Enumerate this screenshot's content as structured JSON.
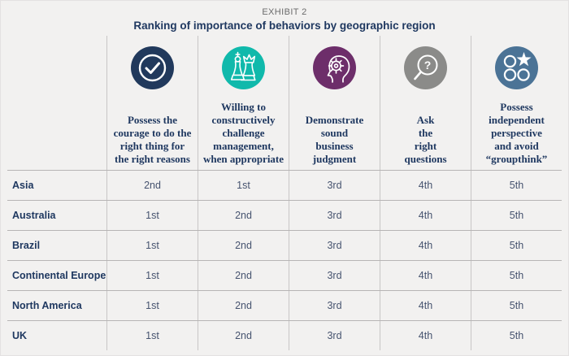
{
  "header": {
    "exhibit_label": "EXHIBIT 2",
    "title": "Ranking of importance of behaviors by geographic region"
  },
  "columns": [
    {
      "icon": "check-circle-icon",
      "color": "#21395c",
      "label": "Possess the\ncourage to do the\nright thing for\nthe right reasons"
    },
    {
      "icon": "chess-pieces-icon",
      "color": "#10b9ab",
      "label": "Willing to\nconstructively\nchallenge\nmanagement,\nwhen appropriate"
    },
    {
      "icon": "head-gear-icon",
      "color": "#6d2e6a",
      "label": "Demonstrate\nsound\nbusiness\njudgment"
    },
    {
      "icon": "magnifier-question-icon",
      "color": "#8b8b89",
      "label": "Ask\nthe\nright\nquestions"
    },
    {
      "icon": "circles-star-icon",
      "color": "#4b7396",
      "label": "Possess\nindependent\nperspective\nand avoid\n“groupthink”"
    }
  ],
  "rows": [
    {
      "region": "Asia",
      "ranks": [
        "2nd",
        "1st",
        "3rd",
        "4th",
        "5th"
      ]
    },
    {
      "region": "Australia",
      "ranks": [
        "1st",
        "2nd",
        "3rd",
        "4th",
        "5th"
      ]
    },
    {
      "region": "Brazil",
      "ranks": [
        "1st",
        "2nd",
        "3rd",
        "4th",
        "5th"
      ]
    },
    {
      "region": "Continental Europe",
      "ranks": [
        "1st",
        "2nd",
        "3rd",
        "4th",
        "5th"
      ]
    },
    {
      "region": "North America",
      "ranks": [
        "1st",
        "2nd",
        "3rd",
        "4th",
        "5th"
      ]
    },
    {
      "region": "UK",
      "ranks": [
        "1st",
        "2nd",
        "3rd",
        "4th",
        "5th"
      ]
    }
  ],
  "chart_data": {
    "type": "table",
    "title": "Ranking of importance of behaviors by geographic region",
    "exhibit": "EXHIBIT 2",
    "columns": [
      "Possess the courage to do the right thing for the right reasons",
      "Willing to constructively challenge management, when appropriate",
      "Demonstrate sound business judgment",
      "Ask the right questions",
      "Possess independent perspective and avoid “groupthink”"
    ],
    "rows": [
      "Asia",
      "Australia",
      "Brazil",
      "Continental Europe",
      "North America",
      "UK"
    ],
    "values": [
      [
        "2nd",
        "1st",
        "3rd",
        "4th",
        "5th"
      ],
      [
        "1st",
        "2nd",
        "3rd",
        "4th",
        "5th"
      ],
      [
        "1st",
        "2nd",
        "3rd",
        "4th",
        "5th"
      ],
      [
        "1st",
        "2nd",
        "3rd",
        "4th",
        "5th"
      ],
      [
        "1st",
        "2nd",
        "3rd",
        "4th",
        "5th"
      ],
      [
        "1st",
        "2nd",
        "3rd",
        "4th",
        "5th"
      ]
    ],
    "layout": {
      "grid": true,
      "legend": "none"
    }
  }
}
